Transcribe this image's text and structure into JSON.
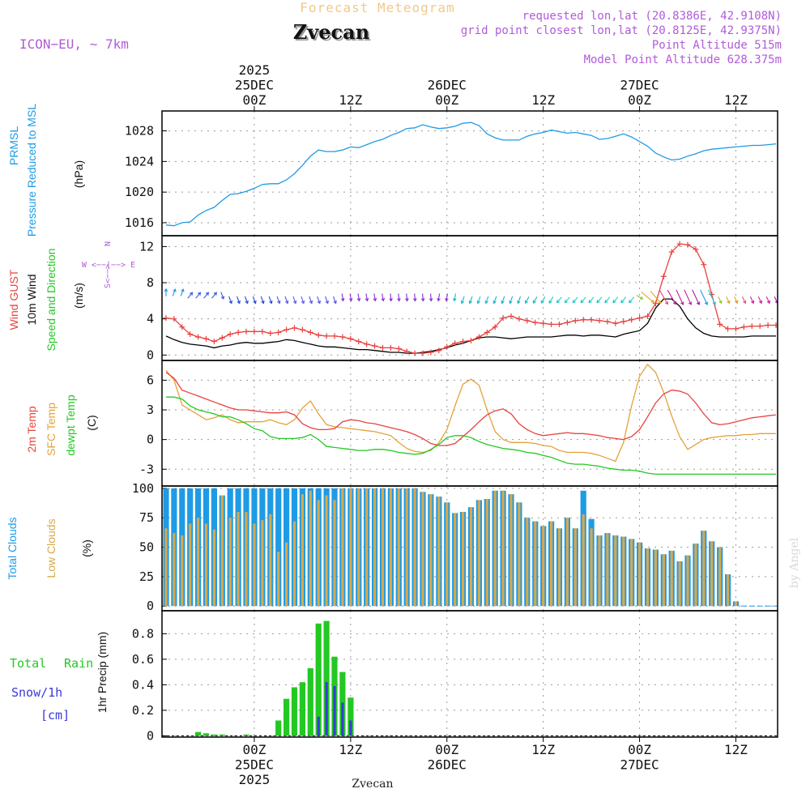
{
  "header": {
    "title": "Forecast Meteogram",
    "station": "Zvecan",
    "model": "ICON−EU, ∼ 7km",
    "requested": "requested lon,lat (20.8386E, 42.9108N)",
    "gridpoint": "grid point closest lon,lat (20.8125E, 42.9375N)",
    "point_alt": "Point Altitude 515m",
    "model_alt": "Model Point Altitude 628.375m",
    "watermark": "by Angel",
    "bottom_label": "Zvecan"
  },
  "time_axis": {
    "top_ticks": [
      {
        "t": 0,
        "lines": [
          "2025",
          "25DEC",
          "00Z"
        ]
      },
      {
        "t": 12,
        "lines": [
          "12Z"
        ]
      },
      {
        "t": 24,
        "lines": [
          "26DEC",
          "00Z"
        ]
      },
      {
        "t": 36,
        "lines": [
          "12Z"
        ]
      },
      {
        "t": 48,
        "lines": [
          "27DEC",
          "00Z"
        ]
      },
      {
        "t": 60,
        "lines": [
          "12Z"
        ]
      }
    ],
    "bottom_ticks": [
      {
        "t": 0,
        "lines": [
          "00Z",
          "25DEC",
          "2025"
        ]
      },
      {
        "t": 12,
        "lines": [
          "12Z"
        ]
      },
      {
        "t": 24,
        "lines": [
          "00Z",
          "26DEC"
        ]
      },
      {
        "t": 36,
        "lines": [
          "12Z"
        ]
      },
      {
        "t": 48,
        "lines": [
          "00Z",
          "27DEC"
        ]
      },
      {
        "t": 60,
        "lines": [
          "12Z"
        ]
      }
    ],
    "xmin": -11.5,
    "xmax": 65.2
  },
  "colors": {
    "pressure": "#1e9be6",
    "gust": "#e8423e",
    "wind": "#000000",
    "temp2m": "#e8423e",
    "sfc": "#e3a23a",
    "dewpt": "#23c823",
    "total_clouds": "#1e9be6",
    "low_clouds": "#d9a84a",
    "rain": "#23c823",
    "snow": "#3a3ad8",
    "purple": "#b15bd8",
    "title": "#f2c98a",
    "grid": "#999999"
  },
  "chart_data": [
    {
      "type": "line",
      "name": "pressure",
      "labels": [
        "PRMSL",
        "Pressure Reduced to MSL",
        "(hPa)"
      ],
      "ylim": [
        1014.3,
        1030.6
      ],
      "yticks": [
        1016,
        1020,
        1024,
        1028
      ],
      "x": [
        -11,
        -10,
        -9,
        -8,
        -7,
        -6,
        -5,
        -4,
        -3,
        -2,
        -1,
        0,
        1,
        2,
        3,
        4,
        5,
        6,
        7,
        8,
        9,
        10,
        11,
        12,
        13,
        14,
        15,
        16,
        17,
        18,
        19,
        20,
        21,
        22,
        23,
        24,
        25,
        26,
        27,
        28,
        29,
        30,
        31,
        32,
        33,
        34,
        35,
        36,
        37,
        38,
        39,
        40,
        41,
        42,
        43,
        44,
        45,
        46,
        47,
        48,
        49,
        50,
        51,
        52,
        53,
        54,
        55,
        56,
        57,
        58,
        59,
        60,
        61,
        62,
        63,
        64,
        65
      ],
      "values": [
        1015.7,
        1015.6,
        1016.0,
        1016.1,
        1017.0,
        1017.6,
        1018.0,
        1018.9,
        1019.7,
        1019.8,
        1020.1,
        1020.5,
        1021.0,
        1021.1,
        1021.1,
        1021.6,
        1022.4,
        1023.5,
        1024.7,
        1025.5,
        1025.3,
        1025.3,
        1025.5,
        1025.9,
        1025.8,
        1026.2,
        1026.6,
        1026.9,
        1027.4,
        1027.8,
        1028.3,
        1028.4,
        1028.8,
        1028.5,
        1028.3,
        1028.4,
        1028.6,
        1029.0,
        1029.1,
        1028.7,
        1027.6,
        1027.1,
        1026.8,
        1026.8,
        1026.8,
        1027.3,
        1027.6,
        1027.8,
        1028.1,
        1027.9,
        1027.7,
        1027.8,
        1027.6,
        1027.4,
        1026.9,
        1027.0,
        1027.3,
        1027.6,
        1027.2,
        1026.6,
        1026.0,
        1025.1,
        1024.6,
        1024.2,
        1024.3,
        1024.7,
        1025.0,
        1025.4,
        1025.6,
        1025.7,
        1025.8,
        1025.9,
        1026.0,
        1026.1,
        1026.1,
        1026.2,
        1026.3
      ]
    },
    {
      "type": "line",
      "name": "wind",
      "labels": [
        "Wind GUST",
        "10m Wind",
        "Speed and Direction",
        "(m/s)",
        "N",
        "W <−−|−−> E",
        "S<−−>"
      ],
      "ylim": [
        -0.6,
        13.2
      ],
      "yticks": [
        0,
        4,
        8,
        12
      ],
      "x": [
        -11,
        -10,
        -9,
        -8,
        -7,
        -6,
        -5,
        -4,
        -3,
        -2,
        -1,
        0,
        1,
        2,
        3,
        4,
        5,
        6,
        7,
        8,
        9,
        10,
        11,
        12,
        13,
        14,
        15,
        16,
        17,
        18,
        19,
        20,
        21,
        22,
        23,
        24,
        25,
        26,
        27,
        28,
        29,
        30,
        31,
        32,
        33,
        34,
        35,
        36,
        37,
        38,
        39,
        40,
        41,
        42,
        43,
        44,
        45,
        46,
        47,
        48,
        49,
        50,
        51,
        52,
        53,
        54,
        55,
        56,
        57,
        58,
        59,
        60,
        61,
        62,
        63,
        64,
        65
      ],
      "gust": [
        4.1,
        4.0,
        3.1,
        2.3,
        2.0,
        1.8,
        1.5,
        1.9,
        2.3,
        2.5,
        2.6,
        2.6,
        2.6,
        2.4,
        2.5,
        2.8,
        3.0,
        2.8,
        2.5,
        2.2,
        2.1,
        2.1,
        2.0,
        1.8,
        1.5,
        1.2,
        1.0,
        0.8,
        0.8,
        0.7,
        0.4,
        0.2,
        0.2,
        0.3,
        0.5,
        0.9,
        1.3,
        1.5,
        1.6,
        2.0,
        2.5,
        3.1,
        4.1,
        4.3,
        4.0,
        3.8,
        3.6,
        3.5,
        3.4,
        3.4,
        3.6,
        3.8,
        3.9,
        3.9,
        3.8,
        3.7,
        3.5,
        3.7,
        3.9,
        4.1,
        4.3,
        5.7,
        8.7,
        11.4,
        12.3,
        12.2,
        11.7,
        10.0,
        6.7,
        3.4,
        2.9,
        2.9,
        3.1,
        3.2,
        3.2,
        3.3,
        3.3
      ],
      "wind": [
        2.1,
        1.7,
        1.4,
        1.2,
        1.1,
        1.0,
        0.8,
        1.0,
        1.1,
        1.3,
        1.4,
        1.3,
        1.3,
        1.4,
        1.5,
        1.7,
        1.6,
        1.4,
        1.2,
        1.0,
        0.9,
        0.9,
        0.8,
        0.7,
        0.6,
        0.6,
        0.5,
        0.4,
        0.3,
        0.3,
        0.2,
        0.2,
        0.3,
        0.4,
        0.6,
        0.8,
        1.1,
        1.3,
        1.6,
        1.9,
        2.0,
        2.0,
        1.9,
        1.8,
        1.9,
        2.0,
        2.0,
        2.0,
        2.0,
        2.1,
        2.2,
        2.2,
        2.1,
        2.2,
        2.2,
        2.1,
        2.0,
        2.3,
        2.5,
        2.7,
        3.5,
        5.2,
        6.2,
        6.2,
        5.4,
        4.0,
        3.0,
        2.4,
        2.1,
        2.0,
        2.0,
        2.0,
        2.0,
        2.1,
        2.1,
        2.1,
        2.1
      ],
      "dir": [
        180,
        200,
        200,
        220,
        220,
        220,
        220,
        340,
        340,
        340,
        340,
        340,
        340,
        340,
        340,
        340,
        340,
        340,
        340,
        340,
        340,
        340,
        350,
        350,
        350,
        350,
        350,
        350,
        355,
        355,
        355,
        355,
        355,
        355,
        10,
        10,
        10,
        20,
        20,
        20,
        20,
        20,
        20,
        20,
        20,
        30,
        30,
        30,
        30,
        40,
        40,
        40,
        40,
        40,
        40,
        40,
        40,
        40,
        40,
        300,
        310,
        320,
        330,
        330,
        335,
        335,
        335,
        335,
        335,
        335,
        335,
        335,
        335,
        335,
        335,
        335,
        335
      ]
    },
    {
      "type": "line",
      "name": "temperature",
      "labels": [
        "2m Temp",
        "SFC Temp",
        "dewpt Temp",
        "(C)"
      ],
      "ylim": [
        -4.7,
        8.0
      ],
      "yticks": [
        -3,
        0,
        3,
        6
      ],
      "x": [
        -11,
        -10,
        -9,
        -8,
        -7,
        -6,
        -5,
        -4,
        -3,
        -2,
        -1,
        0,
        1,
        2,
        3,
        4,
        5,
        6,
        7,
        8,
        9,
        10,
        11,
        12,
        13,
        14,
        15,
        16,
        17,
        18,
        19,
        20,
        21,
        22,
        23,
        24,
        25,
        26,
        27,
        28,
        29,
        30,
        31,
        32,
        33,
        34,
        35,
        36,
        37,
        38,
        39,
        40,
        41,
        42,
        43,
        44,
        45,
        46,
        47,
        48,
        49,
        50,
        51,
        52,
        53,
        54,
        55,
        56,
        57,
        58,
        59,
        60,
        61,
        62,
        63,
        64,
        65
      ],
      "t2m": [
        6.8,
        6.2,
        5.0,
        4.7,
        4.4,
        4.1,
        3.8,
        3.5,
        3.2,
        3.0,
        3.0,
        2.9,
        2.8,
        2.7,
        2.7,
        2.8,
        2.5,
        1.6,
        1.2,
        1.0,
        1.0,
        1.1,
        1.8,
        2.0,
        1.9,
        1.7,
        1.6,
        1.4,
        1.2,
        1.0,
        0.8,
        0.5,
        0.1,
        -0.4,
        -0.6,
        -0.6,
        -0.4,
        0.3,
        1.0,
        1.8,
        2.5,
        2.9,
        3.1,
        2.6,
        1.6,
        1.0,
        0.6,
        0.4,
        0.5,
        0.6,
        0.7,
        0.6,
        0.6,
        0.5,
        0.4,
        0.2,
        0.1,
        0.0,
        0.3,
        1.0,
        2.3,
        3.7,
        4.6,
        5.0,
        4.9,
        4.6,
        3.7,
        2.6,
        1.7,
        1.5,
        1.6,
        1.8,
        2.0,
        2.2,
        2.3,
        2.4,
        2.5
      ],
      "sfc": [
        7.0,
        6.0,
        3.5,
        3.0,
        2.5,
        2.0,
        2.2,
        2.5,
        2.0,
        1.7,
        1.8,
        1.8,
        1.8,
        2.0,
        1.7,
        1.5,
        2.0,
        3.2,
        3.9,
        2.6,
        1.5,
        1.3,
        1.2,
        1.1,
        1.0,
        0.9,
        0.8,
        0.6,
        0.4,
        -0.3,
        -0.9,
        -1.2,
        -1.3,
        -1.1,
        -0.3,
        1.0,
        3.4,
        5.6,
        6.1,
        5.5,
        3.0,
        0.8,
        0.0,
        -0.3,
        -0.3,
        -0.3,
        -0.4,
        -0.6,
        -0.7,
        -1.1,
        -1.3,
        -1.3,
        -1.3,
        -1.4,
        -1.6,
        -1.9,
        -2.2,
        -0.3,
        3.4,
        6.4,
        7.6,
        6.8,
        4.8,
        2.4,
        0.3,
        -1.0,
        -0.5,
        0.0,
        0.2,
        0.3,
        0.4,
        0.4,
        0.5,
        0.5,
        0.6,
        0.6,
        0.6
      ],
      "dewpt": [
        4.3,
        4.3,
        4.1,
        3.4,
        3.0,
        2.8,
        2.6,
        2.3,
        2.3,
        2.0,
        1.6,
        1.1,
        0.9,
        0.3,
        0.1,
        0.1,
        0.1,
        0.2,
        0.5,
        0.0,
        -0.7,
        -0.8,
        -0.9,
        -1.0,
        -1.1,
        -1.1,
        -1.0,
        -1.0,
        -1.1,
        -1.3,
        -1.4,
        -1.5,
        -1.4,
        -1.0,
        -0.5,
        0.2,
        0.4,
        0.4,
        0.2,
        -0.2,
        -0.5,
        -0.7,
        -0.9,
        -1.0,
        -1.1,
        -1.3,
        -1.4,
        -1.6,
        -1.8,
        -2.1,
        -2.4,
        -2.5,
        -2.5,
        -2.6,
        -2.7,
        -2.9,
        -3.0,
        -3.1,
        -3.1,
        -3.2,
        -3.4,
        -3.5,
        -3.5,
        -3.5,
        -3.5,
        -3.5,
        -3.5,
        -3.5,
        -3.5,
        -3.5,
        -3.5,
        -3.5,
        -3.5,
        -3.5,
        -3.5,
        -3.5,
        -3.5
      ]
    },
    {
      "type": "bar",
      "name": "clouds",
      "labels": [
        "Total Clouds",
        "Low Clouds",
        "(%)"
      ],
      "ylim": [
        -4,
        102
      ],
      "yticks": [
        0,
        25,
        50,
        75,
        100
      ],
      "x": [
        -11,
        -10,
        -9,
        -8,
        -7,
        -6,
        -5,
        -4,
        -3,
        -2,
        -1,
        0,
        1,
        2,
        3,
        4,
        5,
        6,
        7,
        8,
        9,
        10,
        11,
        12,
        13,
        14,
        15,
        16,
        17,
        18,
        19,
        20,
        21,
        22,
        23,
        24,
        25,
        26,
        27,
        28,
        29,
        30,
        31,
        32,
        33,
        34,
        35,
        36,
        37,
        38,
        39,
        40,
        41,
        42,
        43,
        44,
        45,
        46,
        47,
        48,
        49,
        50,
        51,
        52,
        53,
        54,
        55,
        56,
        57,
        58,
        59,
        60,
        61,
        62,
        63,
        64,
        65
      ],
      "total": [
        100,
        100,
        100,
        100,
        100,
        100,
        100,
        94,
        100,
        100,
        100,
        100,
        100,
        100,
        100,
        100,
        100,
        100,
        100,
        100,
        100,
        100,
        100,
        100,
        100,
        100,
        100,
        100,
        100,
        100,
        100,
        100,
        97,
        95,
        93,
        88,
        79,
        80,
        84,
        90,
        91,
        98,
        98,
        95,
        88,
        75,
        72,
        68,
        72,
        66,
        75,
        66,
        98,
        74,
        60,
        62,
        60,
        59,
        57,
        54,
        49,
        48,
        44,
        47,
        38,
        43,
        53,
        64,
        55,
        50,
        27,
        4,
        0,
        0,
        0,
        0,
        0
      ],
      "low": [
        66,
        62,
        60,
        70,
        75,
        70,
        65,
        94,
        75,
        80,
        80,
        70,
        73,
        78,
        46,
        54,
        72,
        95,
        98,
        90,
        94,
        90,
        100,
        100,
        100,
        100,
        100,
        100,
        100,
        100,
        100,
        100,
        97,
        95,
        93,
        88,
        79,
        80,
        84,
        90,
        91,
        98,
        98,
        95,
        88,
        75,
        72,
        68,
        72,
        66,
        75,
        66,
        78,
        66,
        60,
        62,
        60,
        59,
        57,
        54,
        49,
        48,
        44,
        47,
        38,
        43,
        53,
        64,
        55,
        50,
        27,
        4,
        0,
        0,
        0,
        0,
        0
      ]
    },
    {
      "type": "bar",
      "name": "precipitation",
      "labels": [
        "Total",
        "Rain",
        "Snow/1h",
        "[cm]",
        "1hr Precip (mm)"
      ],
      "ylim": [
        -0.01,
        0.98
      ],
      "yticks": [
        0,
        0.2,
        0.4,
        0.6,
        0.8
      ],
      "ytick_labels": [
        "0",
        "0.2",
        "0.4",
        "0.6",
        "0.8"
      ],
      "x": [
        -11,
        -10,
        -9,
        -8,
        -7,
        -6,
        -5,
        -4,
        -3,
        -2,
        -1,
        0,
        1,
        2,
        3,
        4,
        5,
        6,
        7,
        8,
        9,
        10,
        11,
        12,
        13,
        14,
        15,
        16,
        17,
        18,
        19,
        20,
        21,
        22,
        23,
        24,
        25,
        26,
        27,
        28,
        29,
        30,
        31,
        32,
        33,
        34,
        35,
        36,
        37,
        38,
        39,
        40,
        41,
        42,
        43,
        44,
        45,
        46,
        47,
        48,
        49,
        50,
        51,
        52,
        53,
        54,
        55,
        56,
        57,
        58,
        59,
        60,
        61,
        62,
        63,
        64,
        65
      ],
      "rain": [
        0,
        0,
        0,
        0,
        0.03,
        0.02,
        0.01,
        0.01,
        0,
        0,
        0.01,
        0,
        0,
        0,
        0.12,
        0.29,
        0.38,
        0.42,
        0.53,
        0.88,
        0.9,
        0.62,
        0.5,
        0.3,
        0,
        0,
        0,
        0,
        0,
        0,
        0,
        0,
        0,
        0,
        0,
        0,
        0,
        0,
        0,
        0,
        0,
        0,
        0,
        0,
        0,
        0,
        0,
        0,
        0,
        0,
        0,
        0,
        0,
        0,
        0,
        0,
        0,
        0,
        0,
        0,
        0,
        0,
        0,
        0,
        0,
        0,
        0,
        0,
        0,
        0,
        0,
        0,
        0,
        0,
        0,
        0,
        0
      ],
      "snow": [
        0,
        0,
        0,
        0,
        0,
        0,
        0,
        0,
        0,
        0,
        0,
        0,
        0,
        0,
        0,
        0,
        0,
        0,
        0,
        0.15,
        0.42,
        0.39,
        0.26,
        0.12,
        0,
        0,
        0,
        0,
        0,
        0,
        0,
        0,
        0,
        0,
        0,
        0,
        0,
        0,
        0,
        0,
        0,
        0,
        0,
        0,
        0,
        0,
        0,
        0,
        0,
        0,
        0,
        0,
        0,
        0,
        0,
        0,
        0,
        0,
        0,
        0,
        0,
        0,
        0,
        0,
        0,
        0,
        0,
        0,
        0,
        0,
        0,
        0,
        0,
        0,
        0,
        0,
        0
      ]
    }
  ]
}
